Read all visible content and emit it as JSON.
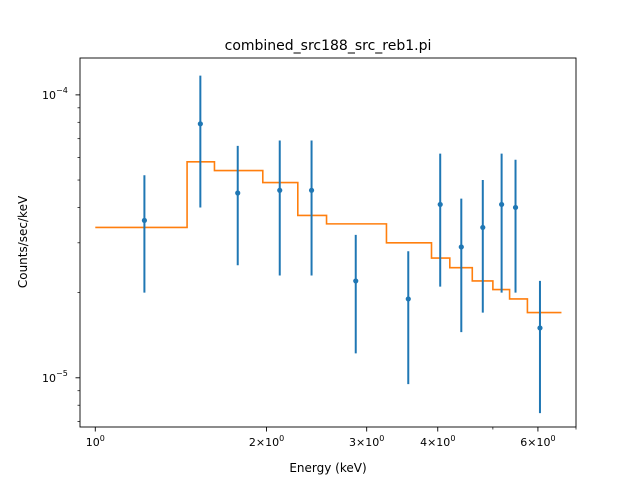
{
  "chart_data": {
    "type": "scatter",
    "title": "combined_src188_src_reb1.pi",
    "xlabel": "Energy (keV)",
    "ylabel": "Counts/sec/keV",
    "xscale": "log",
    "yscale": "log",
    "xlim": [
      0.94,
      7.0
    ],
    "ylim": [
      6.7e-06,
      0.000135
    ],
    "x_ticks": [
      {
        "value": 1,
        "label": "10"
      },
      {
        "value": 2,
        "label": "2×10"
      },
      {
        "value": 3,
        "label": "3×10"
      },
      {
        "value": 4,
        "label": "4×10"
      },
      {
        "value": 6,
        "label": "6×10"
      }
    ],
    "x_tick_exponent": "0",
    "x_minor_ticks": [
      5,
      7
    ],
    "y_ticks": [
      {
        "value": 1e-05,
        "label": "10",
        "exponent": "−5"
      },
      {
        "value": 0.0001,
        "label": "10",
        "exponent": "−4"
      }
    ],
    "y_minor_ticks": [
      7e-06,
      8e-06,
      9e-06,
      2e-05,
      3e-05,
      4e-05,
      5e-05,
      6e-05,
      7e-05,
      8e-05,
      9e-05
    ],
    "grid": false,
    "colors": {
      "data": "#1f77b4",
      "model": "#ff7f0e"
    },
    "series": [
      {
        "kind": "errorbar",
        "points": [
          {
            "x": 1.22,
            "y": 3.6e-05,
            "ylo": 2e-05,
            "yhi": 5.2e-05
          },
          {
            "x": 1.53,
            "y": 7.9e-05,
            "ylo": 4e-05,
            "yhi": 0.000117
          },
          {
            "x": 1.78,
            "y": 4.5e-05,
            "ylo": 2.5e-05,
            "yhi": 6.6e-05
          },
          {
            "x": 2.11,
            "y": 4.6e-05,
            "ylo": 2.3e-05,
            "yhi": 6.9e-05
          },
          {
            "x": 2.4,
            "y": 4.6e-05,
            "ylo": 2.3e-05,
            "yhi": 6.9e-05
          },
          {
            "x": 2.87,
            "y": 2.2e-05,
            "ylo": 1.22e-05,
            "yhi": 3.2e-05
          },
          {
            "x": 3.55,
            "y": 1.9e-05,
            "ylo": 9.5e-06,
            "yhi": 2.8e-05
          },
          {
            "x": 4.04,
            "y": 4.1e-05,
            "ylo": 2.1e-05,
            "yhi": 6.2e-05
          },
          {
            "x": 4.4,
            "y": 2.9e-05,
            "ylo": 1.45e-05,
            "yhi": 4.3e-05
          },
          {
            "x": 4.8,
            "y": 3.4e-05,
            "ylo": 1.7e-05,
            "yhi": 5e-05
          },
          {
            "x": 5.18,
            "y": 4.1e-05,
            "ylo": 2e-05,
            "yhi": 6.2e-05
          },
          {
            "x": 5.48,
            "y": 4e-05,
            "ylo": 2e-05,
            "yhi": 5.9e-05
          },
          {
            "x": 6.05,
            "y": 1.5e-05,
            "ylo": 7.5e-06,
            "yhi": 2.2e-05
          }
        ]
      },
      {
        "kind": "step",
        "segments": [
          {
            "x0": 1.0,
            "x1": 1.45,
            "y": 3.4e-05
          },
          {
            "x0": 1.45,
            "x1": 1.62,
            "y": 5.8e-05
          },
          {
            "x0": 1.62,
            "x1": 1.97,
            "y": 5.4e-05
          },
          {
            "x0": 1.97,
            "x1": 2.27,
            "y": 4.9e-05
          },
          {
            "x0": 2.27,
            "x1": 2.55,
            "y": 3.75e-05
          },
          {
            "x0": 2.55,
            "x1": 3.25,
            "y": 3.5e-05
          },
          {
            "x0": 3.25,
            "x1": 3.9,
            "y": 3e-05
          },
          {
            "x0": 3.9,
            "x1": 4.2,
            "y": 2.65e-05
          },
          {
            "x0": 4.2,
            "x1": 4.6,
            "y": 2.45e-05
          },
          {
            "x0": 4.6,
            "x1": 5.0,
            "y": 2.2e-05
          },
          {
            "x0": 5.0,
            "x1": 5.35,
            "y": 2.05e-05
          },
          {
            "x0": 5.35,
            "x1": 5.75,
            "y": 1.9e-05
          },
          {
            "x0": 5.75,
            "x1": 6.6,
            "y": 1.7e-05
          }
        ]
      }
    ]
  }
}
